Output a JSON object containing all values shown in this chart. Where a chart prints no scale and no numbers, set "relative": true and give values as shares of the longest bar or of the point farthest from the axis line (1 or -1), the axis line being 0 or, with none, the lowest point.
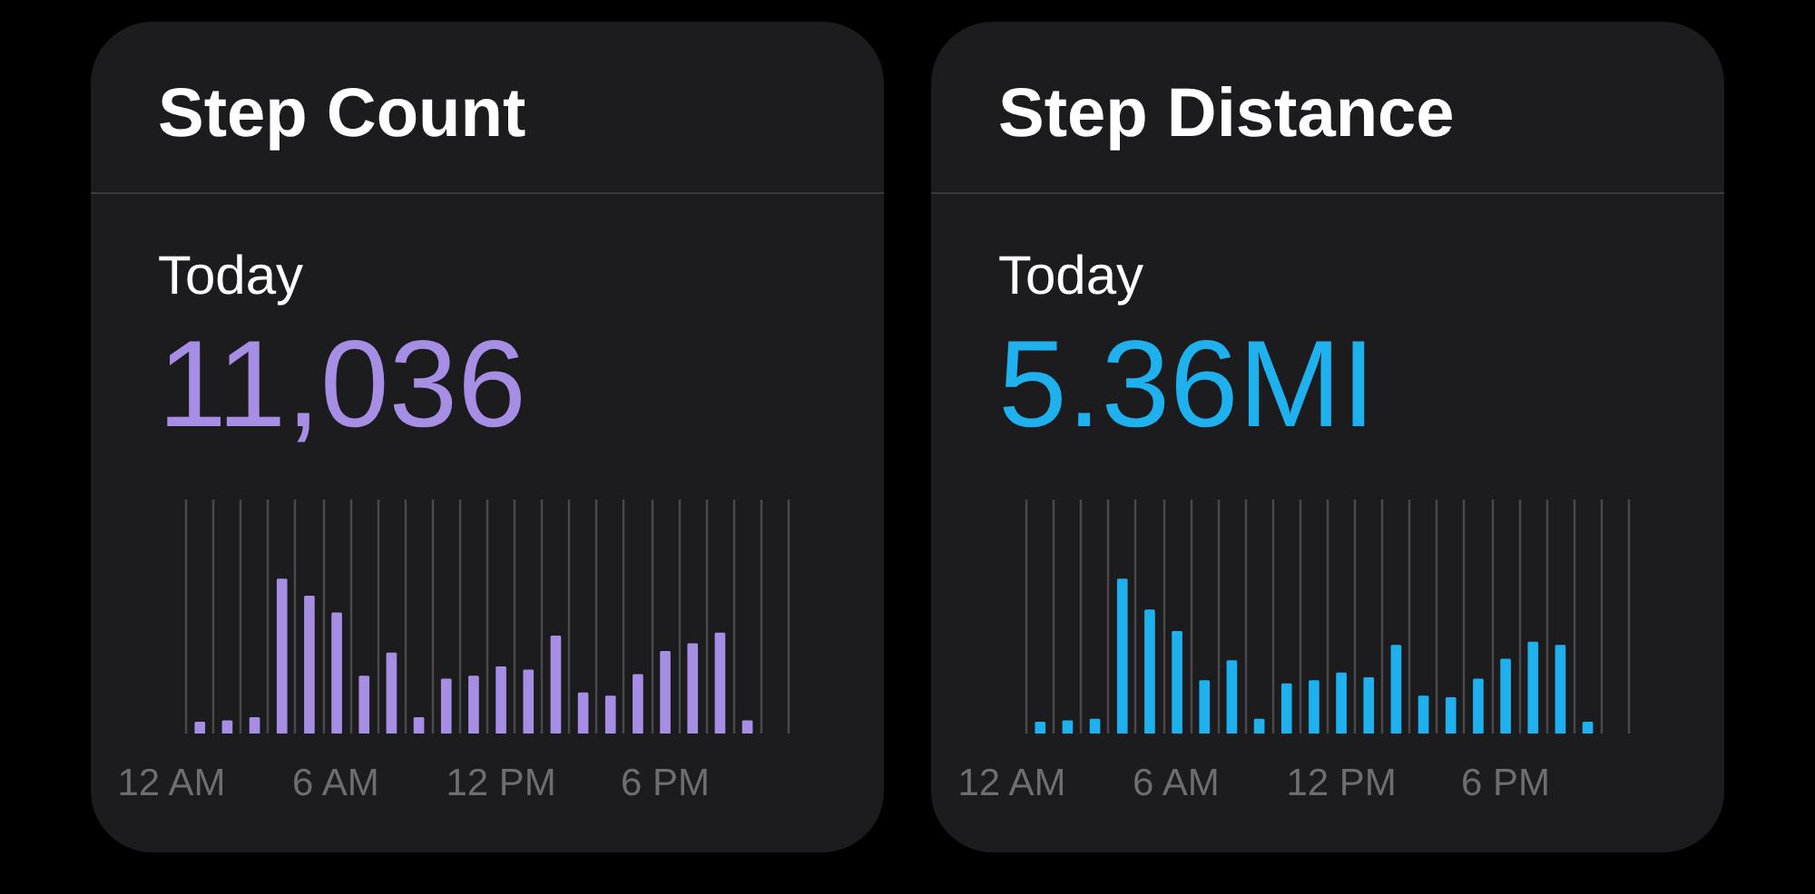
{
  "chart_data": [
    {
      "type": "bar",
      "title": "Step Count",
      "subtitle": "Today",
      "annotations": [
        "11,036"
      ],
      "relative": true,
      "categories": [
        "12 AM",
        null,
        null,
        null,
        null,
        null,
        "6 AM",
        null,
        null,
        null,
        null,
        null,
        "12 PM",
        null,
        null,
        null,
        null,
        null,
        "6 PM",
        null,
        null,
        null,
        null,
        null
      ],
      "series": [
        {
          "color": "#a68ee4",
          "values": [
            null,
            0.07,
            0.08,
            0.1,
            1.0,
            0.89,
            0.78,
            0.37,
            0.52,
            0.1,
            0.35,
            0.37,
            0.43,
            0.41,
            0.63,
            0.26,
            0.24,
            0.38,
            0.53,
            0.58,
            0.65,
            0.08,
            null,
            null
          ]
        }
      ],
      "grid": "x"
    },
    {
      "type": "bar",
      "title": "Step Distance",
      "subtitle": "Today",
      "annotations": [
        "5.36MI"
      ],
      "relative": true,
      "categories": [
        "12 AM",
        null,
        null,
        null,
        null,
        null,
        "6 AM",
        null,
        null,
        null,
        null,
        null,
        "12 PM",
        null,
        null,
        null,
        null,
        null,
        "6 PM",
        null,
        null,
        null,
        null,
        null
      ],
      "series": [
        {
          "color": "#1fb0ee",
          "values": [
            null,
            0.07,
            0.08,
            0.09,
            1.0,
            0.8,
            0.66,
            0.34,
            0.47,
            0.09,
            0.32,
            0.34,
            0.39,
            0.36,
            0.57,
            0.24,
            0.23,
            0.35,
            0.48,
            0.59,
            0.57,
            0.07,
            null,
            null
          ]
        }
      ],
      "grid": "x"
    }
  ]
}
